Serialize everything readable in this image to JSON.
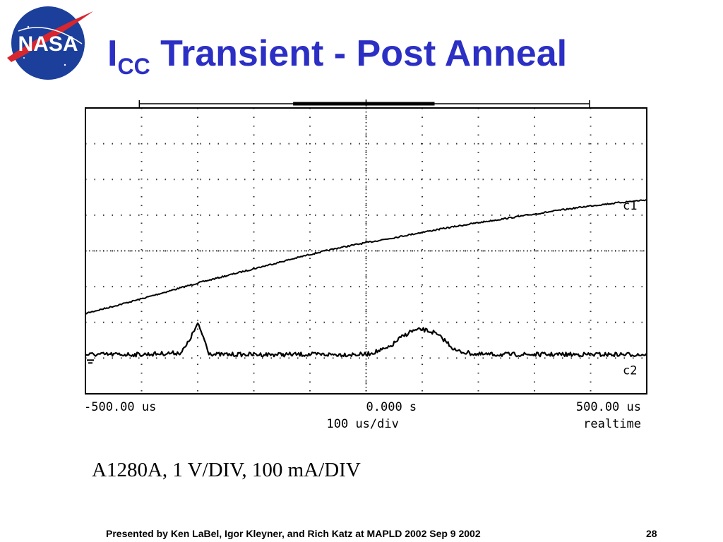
{
  "header": {
    "logo_text": "NASA",
    "title_main": "I",
    "title_sub": "CC",
    "title_rest": " Transient - Post Anneal"
  },
  "chart_data": {
    "type": "line",
    "title": "",
    "xlabel": "",
    "ylabel": "",
    "x_unit": "us",
    "xlim": [
      -500,
      500
    ],
    "divisions": {
      "x": 10,
      "y": 8
    },
    "grid": true,
    "tick_labels": {
      "left": "-500.00 us",
      "center": "0.000  s",
      "right": "500.00 us",
      "center_sub": "100  us/div",
      "right_sub": "realtime"
    },
    "series": [
      {
        "name": "c1",
        "color": "#000000",
        "x": [
          -500,
          -450,
          -400,
          -350,
          -300,
          -250,
          -200,
          -150,
          -100,
          -50,
          0,
          50,
          100,
          150,
          200,
          250,
          300,
          350,
          400,
          450,
          500
        ],
        "y": [
          -1.75,
          -1.55,
          -1.34,
          -1.12,
          -0.9,
          -0.7,
          -0.5,
          -0.3,
          -0.1,
          0.08,
          0.23,
          0.37,
          0.52,
          0.66,
          0.79,
          0.91,
          1.03,
          1.15,
          1.26,
          1.35,
          1.43
        ]
      },
      {
        "name": "c2",
        "color": "#000000",
        "x": [
          -500,
          -400,
          -330,
          -320,
          -310,
          -300,
          -290,
          -280,
          -270,
          -200,
          -100,
          0,
          40,
          60,
          80,
          100,
          120,
          140,
          160,
          200,
          300,
          400,
          500
        ],
        "y": [
          -2.9,
          -2.9,
          -2.85,
          -2.65,
          -2.35,
          -2.05,
          -2.4,
          -2.85,
          -2.9,
          -2.9,
          -2.9,
          -2.9,
          -2.72,
          -2.45,
          -2.25,
          -2.2,
          -2.28,
          -2.5,
          -2.8,
          -2.9,
          -2.9,
          -2.9,
          -2.9
        ]
      }
    ]
  },
  "caption": "A1280A, 1 V/DIV, 100 mA/DIV",
  "footer": {
    "credit": "Presented by Ken LaBel, Igor Kleyner, and Rich Katz at MAPLD 2002 Sep 9 2002",
    "page": "28"
  }
}
